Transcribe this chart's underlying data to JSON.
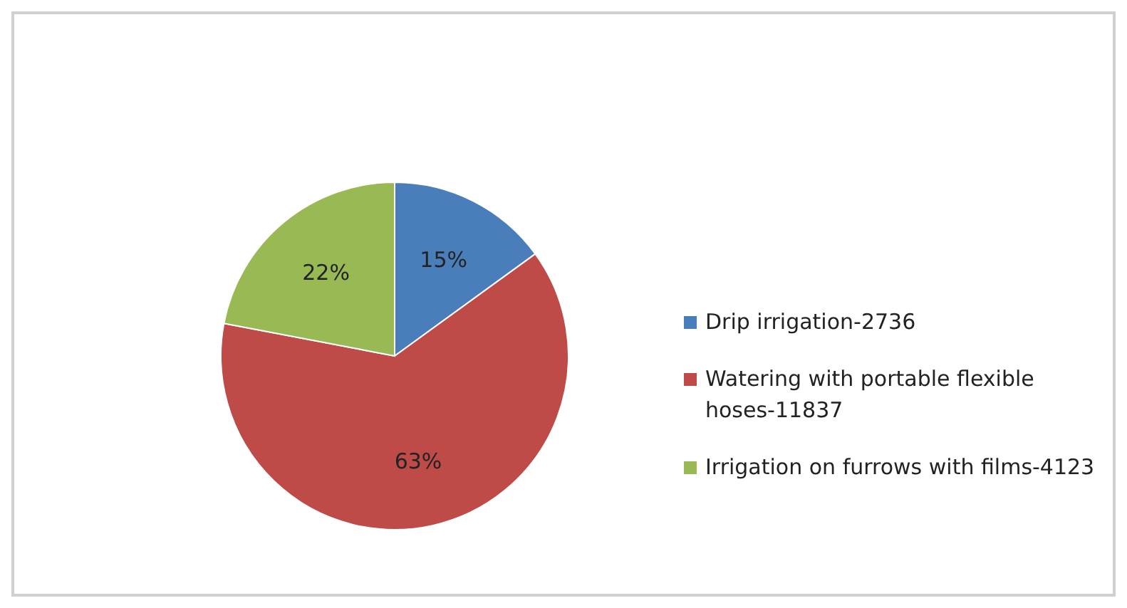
{
  "chart_data": {
    "type": "pie",
    "categories": [
      "Drip irrigation-2736",
      "Watering with portable flexible hoses-11837",
      "Irrigation on furrows with films-4123"
    ],
    "values": [
      15,
      63,
      22
    ],
    "colors": [
      "#4a7ebb",
      "#be4b48",
      "#98b954"
    ],
    "value_labels": [
      "15%",
      "63%",
      "22%"
    ],
    "legend": "right"
  }
}
